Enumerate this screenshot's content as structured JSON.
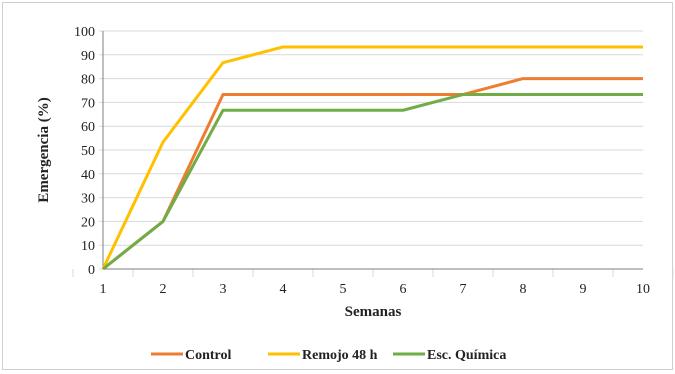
{
  "chart_data": {
    "type": "line",
    "x": [
      1,
      2,
      3,
      4,
      5,
      6,
      7,
      8,
      9,
      10
    ],
    "series": [
      {
        "name": "Control",
        "color": "#ED7D31",
        "values": [
          0,
          20,
          73.3,
          73.3,
          73.3,
          73.3,
          73.3,
          80,
          80,
          80
        ]
      },
      {
        "name": "Remojo 48 h",
        "color": "#FFC000",
        "values": [
          0,
          53.3,
          86.7,
          93.3,
          93.3,
          93.3,
          93.3,
          93.3,
          93.3,
          93.3
        ]
      },
      {
        "name": "Esc. Química",
        "color": "#70AD47",
        "values": [
          0,
          20,
          66.7,
          66.7,
          66.7,
          66.7,
          73.3,
          73.3,
          73.3,
          73.3
        ]
      }
    ],
    "title": "",
    "xlabel": "Semanas",
    "ylabel": "Emergencia (%)",
    "ylim": [
      0,
      100
    ],
    "yticks": [
      0,
      10,
      20,
      30,
      40,
      50,
      60,
      70,
      80,
      90,
      100
    ],
    "xticks": [
      1,
      2,
      3,
      4,
      5,
      6,
      7,
      8,
      9,
      10
    ],
    "grid": "vertical",
    "legend": "bottom"
  }
}
